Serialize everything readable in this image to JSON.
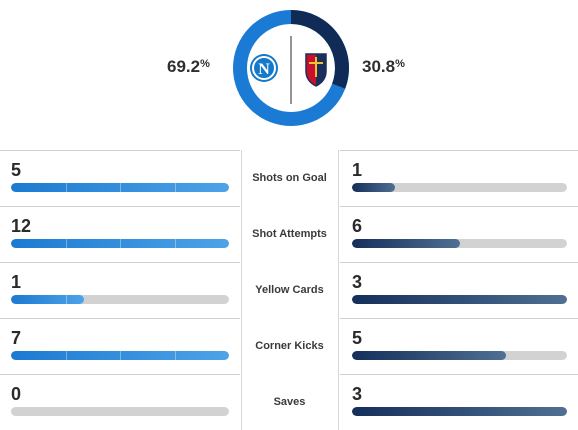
{
  "possession": {
    "home": {
      "value": "69.2",
      "fraction": 0.692,
      "color": "#1a7ad4"
    },
    "away": {
      "value": "30.8",
      "fraction": 0.308,
      "color": "#102b55"
    },
    "percent_symbol": "%",
    "home_crest_icon": "napoli-crest-icon",
    "away_crest_icon": "genoa-crest-icon"
  },
  "stats": [
    {
      "label": "Shots on Goal",
      "home": "5",
      "away": "1",
      "home_fraction": 1.0,
      "away_fraction": 0.2
    },
    {
      "label": "Shot Attempts",
      "home": "12",
      "away": "6",
      "home_fraction": 1.0,
      "away_fraction": 0.5
    },
    {
      "label": "Yellow Cards",
      "home": "1",
      "away": "3",
      "home_fraction": 0.333,
      "away_fraction": 1.0
    },
    {
      "label": "Corner Kicks",
      "home": "7",
      "away": "5",
      "home_fraction": 1.0,
      "away_fraction": 0.714
    },
    {
      "label": "Saves",
      "home": "0",
      "away": "3",
      "home_fraction": 0.0,
      "away_fraction": 1.0
    }
  ]
}
